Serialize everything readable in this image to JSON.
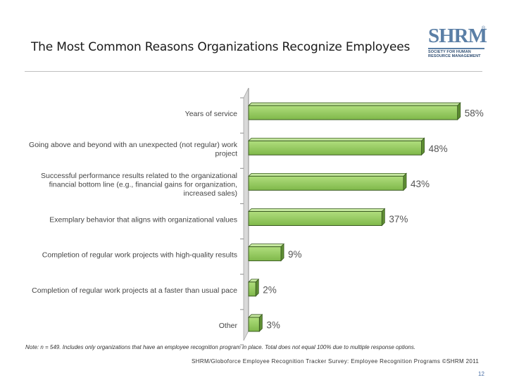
{
  "title": "The Most Common Reasons Organizations Recognize Employees",
  "logo": {
    "wordmark": "SHRM",
    "registered": "®",
    "subtitle_lines": [
      "SOCIETY FOR HUMAN",
      "RESOURCE MANAGEMENT"
    ]
  },
  "chart_data": {
    "type": "bar",
    "orientation": "horizontal",
    "categories": [
      [
        "Years of service"
      ],
      [
        "Going above and beyond with an unexpected (not regular) work",
        "project"
      ],
      [
        "Successful performance results related to the organizational",
        "financial bottom line (e.g., financial gains for organization,",
        "increased sales)"
      ],
      [
        "Exemplary behavior that aligns with organizational values"
      ],
      [
        "Completion of regular work projects with high-quality results"
      ],
      [
        "Completion of regular work projects at a faster than usual pace"
      ],
      [
        "Other"
      ]
    ],
    "values": [
      58,
      48,
      43,
      37,
      9,
      2,
      3
    ],
    "value_labels": [
      "58%",
      "48%",
      "43%",
      "37%",
      "9%",
      "2%",
      "3%"
    ],
    "xlim": [
      0,
      60
    ],
    "bar_color": "#8dc45a",
    "bar_edge_color": "#3a5a20",
    "grid": false,
    "legend": "none"
  },
  "footer": {
    "note": "Note: n = 549. Includes only organizations that have an employee recognition program in place. Total does not equal 100% due to multiple response options.",
    "source": "SHRM/Globoforce Employee Recognition Tracker Survey: Employee Recognition Programs ©SHRM 2011",
    "page_number": "12"
  }
}
